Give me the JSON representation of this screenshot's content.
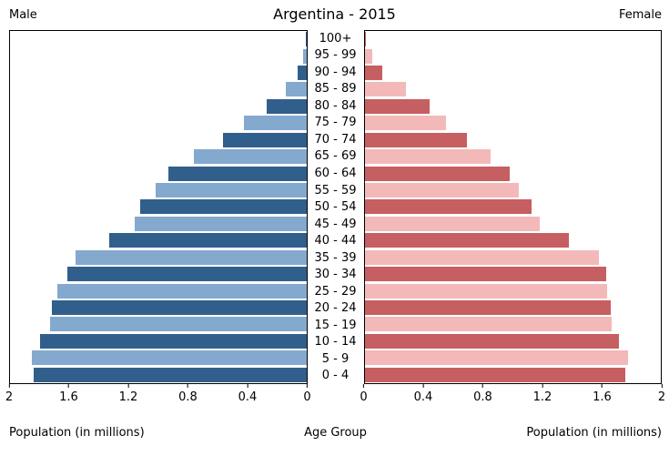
{
  "chart_data": {
    "type": "bar",
    "subtype": "population-pyramid",
    "title": "Argentina - 2015",
    "left_series_label": "Male",
    "right_series_label": "Female",
    "center_axis_label": "Age Group",
    "left_xlabel": "Population (in millions)",
    "right_xlabel": "Population (in millions)",
    "xlim": [
      0,
      2
    ],
    "left_ticks": [
      "2",
      "1.6",
      "1.2",
      "0.8",
      "0.4",
      "0"
    ],
    "right_ticks": [
      "0",
      "0.4",
      "0.8",
      "1.2",
      "1.6",
      "2"
    ],
    "grid": false,
    "age_groups_top_to_bottom": [
      "100+",
      "95 - 99",
      "90 - 94",
      "85 - 89",
      "80 - 84",
      "75 - 79",
      "70 - 74",
      "65 - 69",
      "60 - 64",
      "55 - 59",
      "50 - 54",
      "45 - 49",
      "40 - 44",
      "35 - 39",
      "30 - 34",
      "25 - 29",
      "20 - 24",
      "15 - 19",
      "10 - 14",
      "5 - 9",
      "0 - 4"
    ],
    "series": [
      {
        "name": "Male",
        "side": "left",
        "values_top_to_bottom": [
          0.005,
          0.02,
          0.06,
          0.14,
          0.27,
          0.42,
          0.56,
          0.76,
          0.93,
          1.02,
          1.12,
          1.16,
          1.33,
          1.56,
          1.61,
          1.68,
          1.72,
          1.73,
          1.8,
          1.85,
          1.84
        ]
      },
      {
        "name": "Female",
        "side": "right",
        "values_top_to_bottom": [
          0.01,
          0.05,
          0.12,
          0.28,
          0.44,
          0.55,
          0.69,
          0.85,
          0.98,
          1.04,
          1.13,
          1.18,
          1.38,
          1.58,
          1.63,
          1.64,
          1.66,
          1.67,
          1.72,
          1.78,
          1.76
        ]
      }
    ],
    "colors": {
      "male_dark": "#315f8c",
      "male_light": "#84a9cf",
      "female_dark": "#c65f62",
      "female_light": "#f3b9b9",
      "axis": "#000000",
      "background": "#ffffff"
    },
    "stripe_pattern": "even rows from top use dark shade, odd rows use light shade"
  }
}
